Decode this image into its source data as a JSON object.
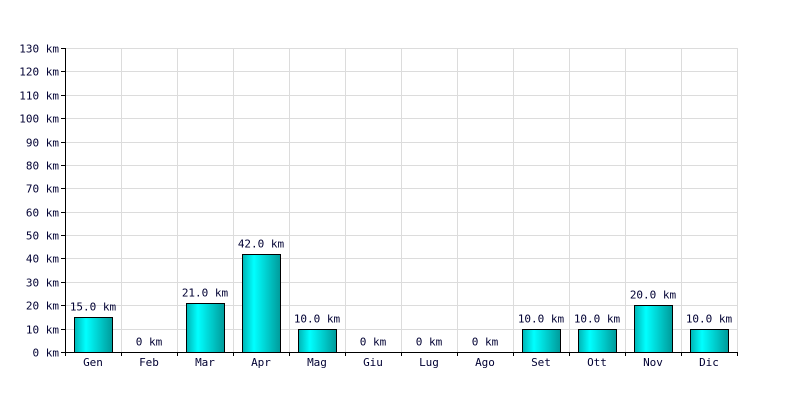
{
  "chart_data": {
    "type": "bar",
    "categories": [
      "Gen",
      "Feb",
      "Mar",
      "Apr",
      "Mag",
      "Giu",
      "Lug",
      "Ago",
      "Set",
      "Ott",
      "Nov",
      "Dic"
    ],
    "values": [
      15.0,
      0,
      21.0,
      42.0,
      10.0,
      0,
      0,
      0,
      10.0,
      10.0,
      20.0,
      10.0
    ],
    "data_labels": [
      "15.0 km",
      "0 km",
      "21.0 km",
      "42.0 km",
      "10.0 km",
      "0 km",
      "0 km",
      "0 km",
      "10.0 km",
      "10.0 km",
      "20.0 km",
      "10.0 km"
    ],
    "y_ticks": [
      0,
      10,
      20,
      30,
      40,
      50,
      60,
      70,
      80,
      90,
      100,
      110,
      120,
      130
    ],
    "y_tick_labels": [
      "0 km",
      "10 km",
      "20 km",
      "30 km",
      "40 km",
      "50 km",
      "60 km",
      "70 km",
      "80 km",
      "90 km",
      "100 km",
      "110 km",
      "120 km",
      "130 km"
    ],
    "ylim": [
      0,
      130
    ],
    "title": "",
    "xlabel": "",
    "ylabel": "",
    "grid": true,
    "bar_gradient": [
      "#00b4b4",
      "#00ffff",
      "#009a9a"
    ]
  }
}
